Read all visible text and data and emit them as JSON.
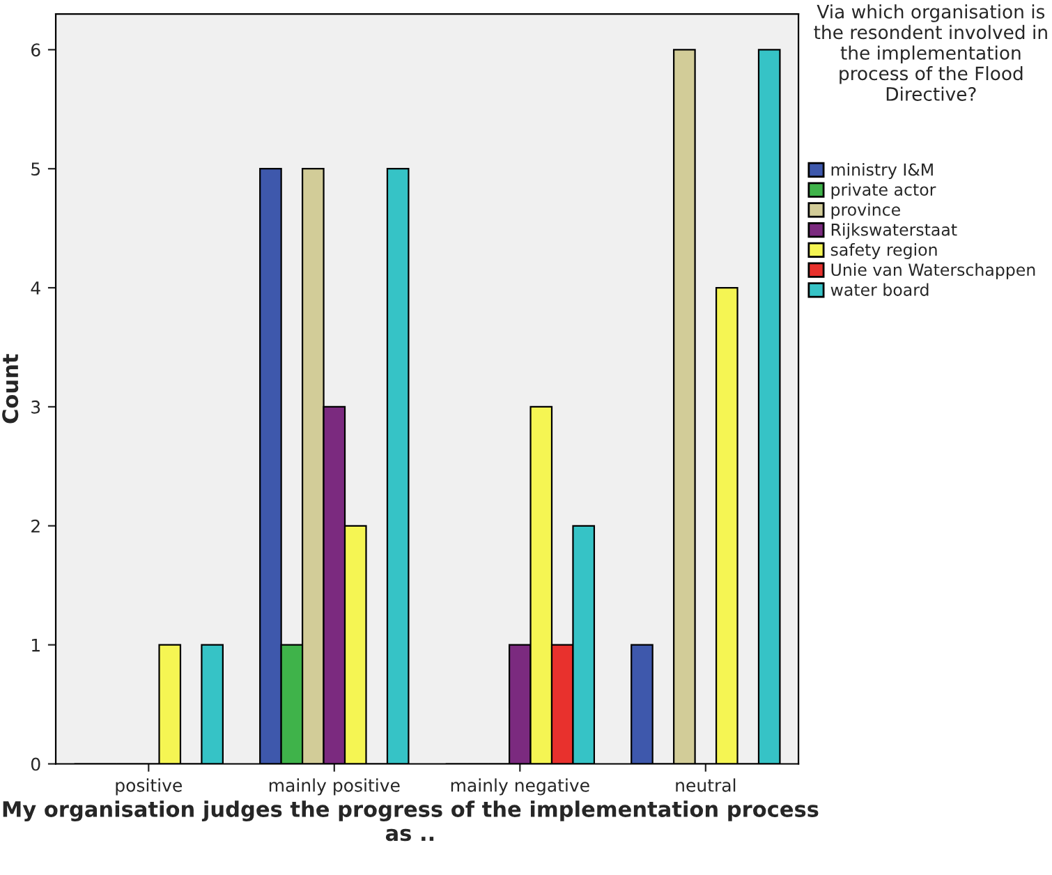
{
  "chart_data": {
    "type": "bar",
    "xlabel": "My organisation judges the progress of the implementation process as ..",
    "ylabel": "Count",
    "legend_title": "Via which organisation is the resondent involved in the implementation process of the Flood Directive?",
    "categories": [
      "positive",
      "mainly positive",
      "mainly negative",
      "neutral"
    ],
    "series": [
      {
        "name": "ministry I&M",
        "color": "#3e58ac",
        "values": [
          0,
          5,
          0,
          1
        ]
      },
      {
        "name": "private actor",
        "color": "#3fb34a",
        "values": [
          0,
          1,
          0,
          0
        ]
      },
      {
        "name": "province",
        "color": "#d2cc98",
        "values": [
          0,
          5,
          0,
          6
        ]
      },
      {
        "name": "Rijkswaterstaat",
        "color": "#7b2a7f",
        "values": [
          0,
          3,
          1,
          0
        ]
      },
      {
        "name": "safety region",
        "color": "#f5f553",
        "values": [
          1,
          2,
          3,
          4
        ]
      },
      {
        "name": "Unie van Waterschappen",
        "color": "#e8312d",
        "values": [
          0,
          0,
          1,
          0
        ]
      },
      {
        "name": "water board",
        "color": "#36c3c6",
        "values": [
          1,
          5,
          2,
          6
        ]
      }
    ],
    "ylim": [
      0,
      6.3
    ],
    "yticks": [
      0,
      1,
      2,
      3,
      4,
      5,
      6
    ],
    "grid": false,
    "legend": "right"
  }
}
